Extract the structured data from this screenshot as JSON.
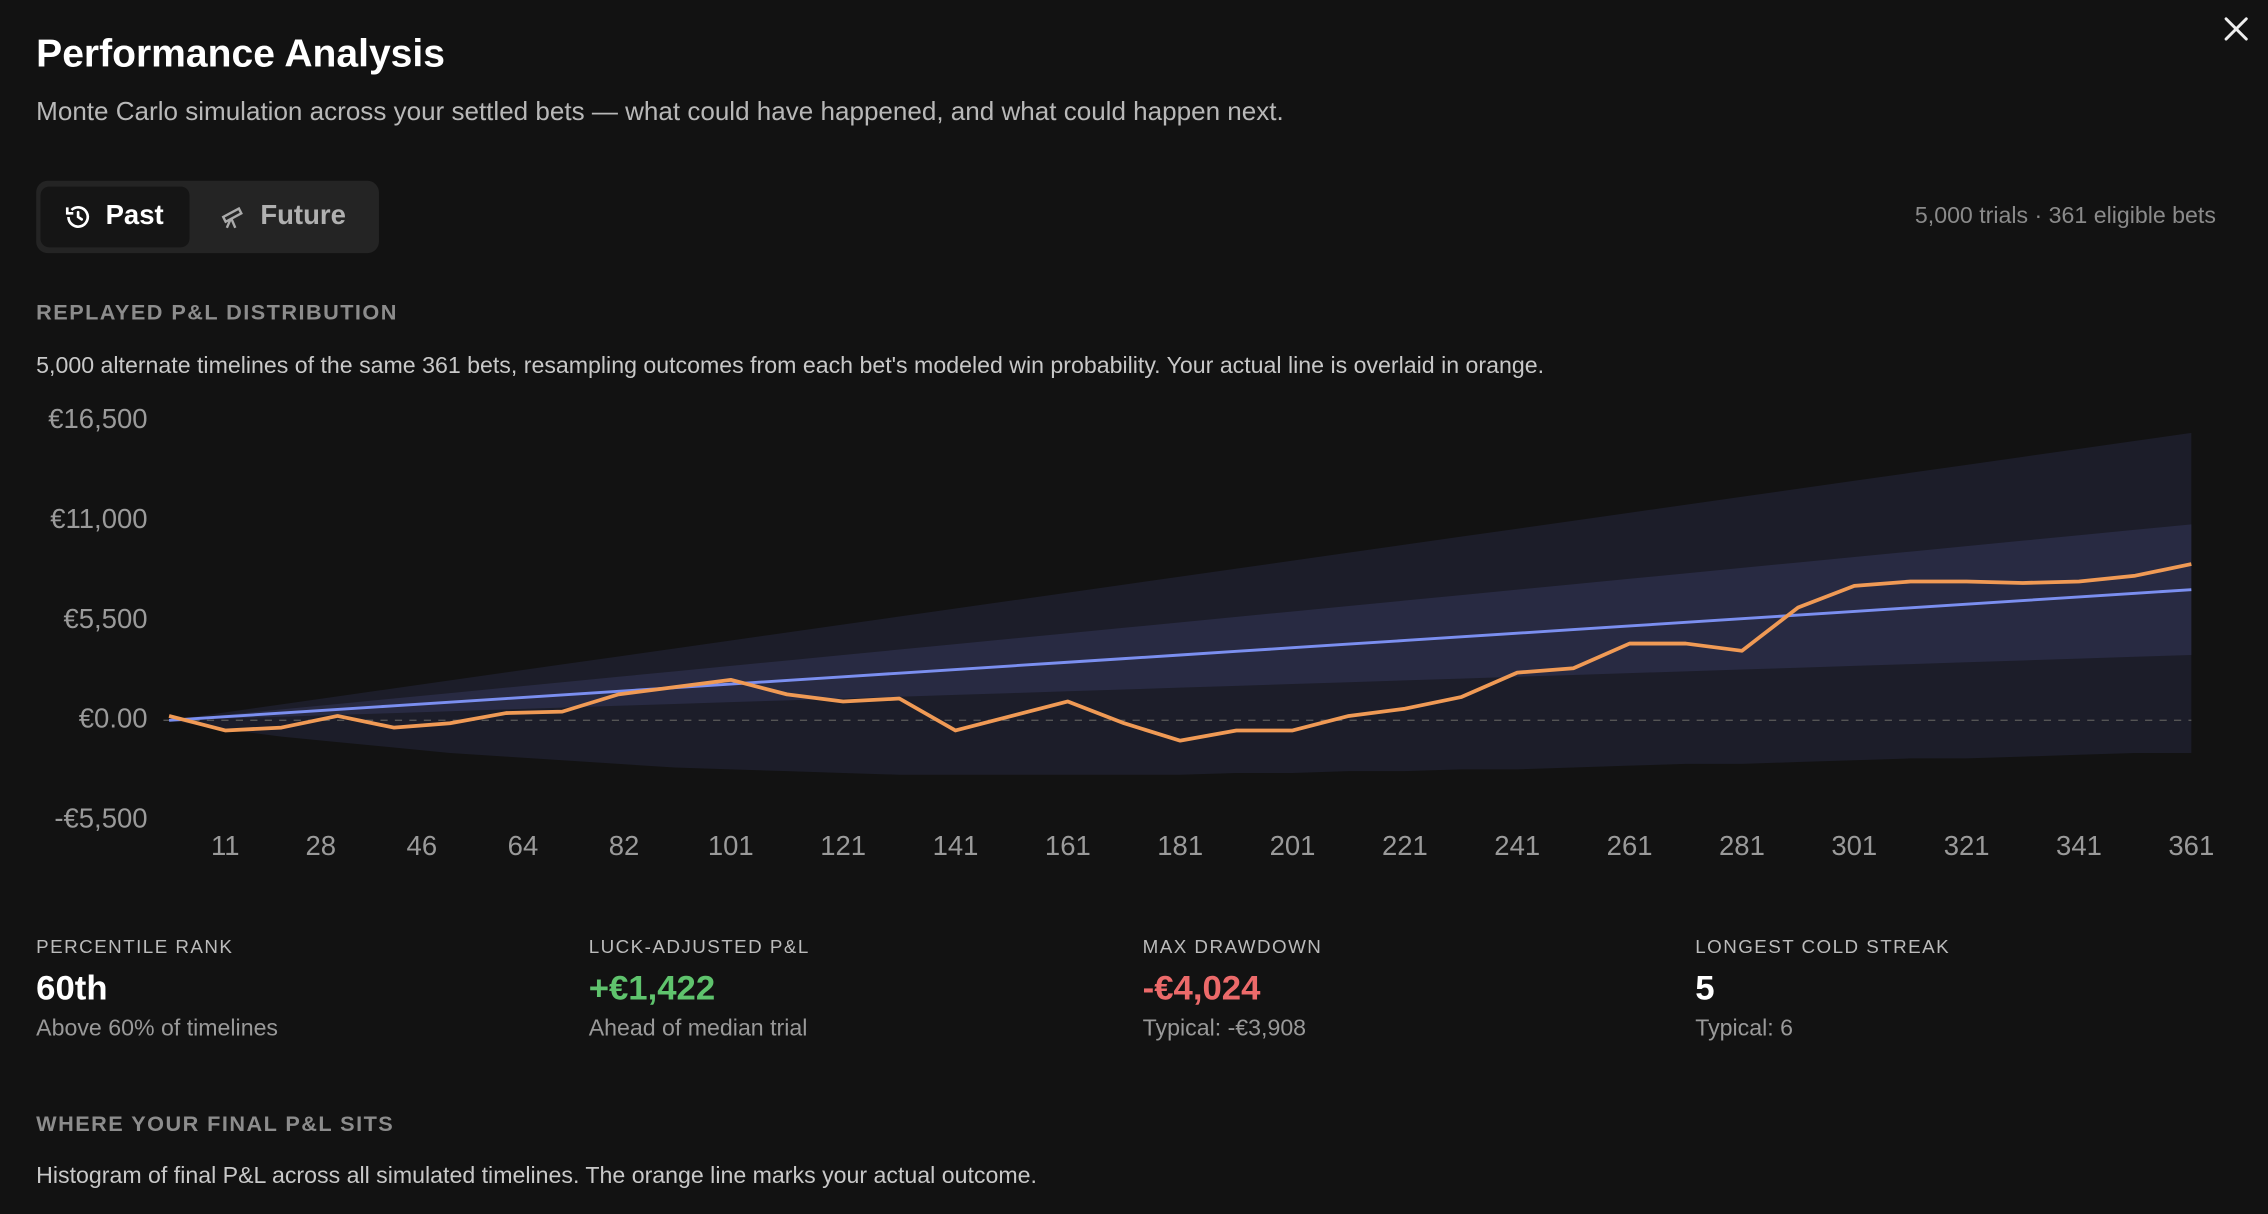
{
  "header": {
    "title": "Performance Analysis",
    "subtitle": "Monte Carlo simulation across your settled bets — what could have happened, and what could happen next."
  },
  "tabs": [
    "Past",
    "Future"
  ],
  "summary": "5,000 trials · 361 eligible bets",
  "section1": {
    "heading": "REPLAYED P&L DISTRIBUTION",
    "description": "5,000 alternate timelines of the same 361 bets, resampling outcomes from each bet's modeled win probability. Your actual line is overlaid in orange."
  },
  "chart_data": {
    "type": "line",
    "x": [
      1,
      11,
      21,
      31,
      41,
      51,
      61,
      71,
      81,
      91,
      101,
      111,
      121,
      131,
      141,
      151,
      161,
      171,
      181,
      191,
      201,
      211,
      221,
      231,
      241,
      251,
      261,
      271,
      281,
      291,
      301,
      311,
      321,
      331,
      341,
      351,
      361
    ],
    "bands": [
      {
        "color": "#1c1d29",
        "lower": [
          0,
          -500,
          -900,
          -1200,
          -1500,
          -1800,
          -2000,
          -2200,
          -2400,
          -2600,
          -2700,
          -2800,
          -2900,
          -3000,
          -3000,
          -3000,
          -3000,
          -3000,
          -3000,
          -2900,
          -2900,
          -2800,
          -2800,
          -2700,
          -2700,
          -2600,
          -2500,
          -2400,
          -2400,
          -2300,
          -2200,
          -2100,
          -2100,
          -2000,
          -1900,
          -1800,
          -1800
        ],
        "upper": [
          0,
          440,
          880,
          1320,
          1760,
          2200,
          2640,
          3080,
          3520,
          3960,
          4400,
          4840,
          5280,
          5720,
          6160,
          6600,
          7040,
          7480,
          7920,
          8360,
          8800,
          9240,
          9680,
          10120,
          10560,
          11000,
          11440,
          11880,
          12320,
          12760,
          13200,
          13640,
          14080,
          14520,
          14960,
          15400,
          15840
        ]
      },
      {
        "color": "#282a42",
        "lower": [
          0,
          100,
          200,
          300,
          400,
          500,
          600,
          700,
          800,
          900,
          1000,
          1100,
          1200,
          1300,
          1400,
          1500,
          1600,
          1700,
          1800,
          1900,
          2000,
          2100,
          2200,
          2300,
          2400,
          2500,
          2600,
          2700,
          2800,
          2900,
          3000,
          3100,
          3200,
          3300,
          3400,
          3500,
          3600
        ],
        "upper": [
          0,
          300,
          600,
          900,
          1200,
          1500,
          1800,
          2100,
          2400,
          2700,
          3000,
          3300,
          3600,
          3900,
          4200,
          4500,
          4800,
          5100,
          5400,
          5700,
          6000,
          6300,
          6600,
          6900,
          7200,
          7500,
          7800,
          8100,
          8400,
          8700,
          9000,
          9300,
          9600,
          9900,
          10200,
          10500,
          10800
        ]
      }
    ],
    "series": [
      {
        "color": "#7b8ff0",
        "values": [
          0,
          200,
          400,
          600,
          800,
          1000,
          1200,
          1400,
          1600,
          1800,
          2000,
          2200,
          2400,
          2600,
          2800,
          3000,
          3200,
          3400,
          3600,
          3800,
          4000,
          4200,
          4400,
          4600,
          4800,
          5000,
          5200,
          5400,
          5600,
          5800,
          6000,
          6200,
          6400,
          6600,
          6800,
          7000,
          7200
        ]
      },
      {
        "color": "#f09a55",
        "values": [
          240,
          -560,
          -400,
          240,
          -400,
          -160,
          400,
          480,
          1430,
          1830,
          2230,
          1430,
          1040,
          1200,
          -560,
          240,
          1040,
          -160,
          -1120,
          -560,
          -560,
          240,
          640,
          1280,
          2630,
          2870,
          4230,
          4230,
          3830,
          6220,
          7410,
          7650,
          7650,
          7570,
          7650,
          7970,
          8610
        ]
      }
    ],
    "xlim": [
      0,
      361
    ],
    "xticks": [
      11,
      28,
      46,
      64,
      82,
      101,
      121,
      141,
      161,
      181,
      201,
      221,
      241,
      261,
      281,
      301,
      321,
      341,
      361
    ],
    "ylim": [
      -5500,
      16500
    ],
    "yticks": [
      {
        "value": 16500,
        "label": "€16,500"
      },
      {
        "value": 11000,
        "label": "€11,000"
      },
      {
        "value": 5500,
        "label": "€5,500"
      },
      {
        "value": 0,
        "label": "€0.00"
      },
      {
        "value": -5500,
        "label": "-€5,500"
      }
    ],
    "grid": false
  },
  "stats": [
    {
      "label": "PERCENTILE RANK",
      "value": "60th",
      "note": "Above 60% of timelines"
    },
    {
      "label": "LUCK-ADJUSTED P&L",
      "value": "+€1,422",
      "note": "Ahead of median trial"
    },
    {
      "label": "MAX DRAWDOWN",
      "value": "-€4,024",
      "note": "Typical: -€3,908"
    },
    {
      "label": "LONGEST COLD STREAK",
      "value": "5",
      "note": "Typical: 6"
    }
  ],
  "section2": {
    "heading": "WHERE YOUR FINAL P&L SITS",
    "description": "Histogram of final P&L across all simulated timelines. The orange line marks your actual outcome."
  }
}
